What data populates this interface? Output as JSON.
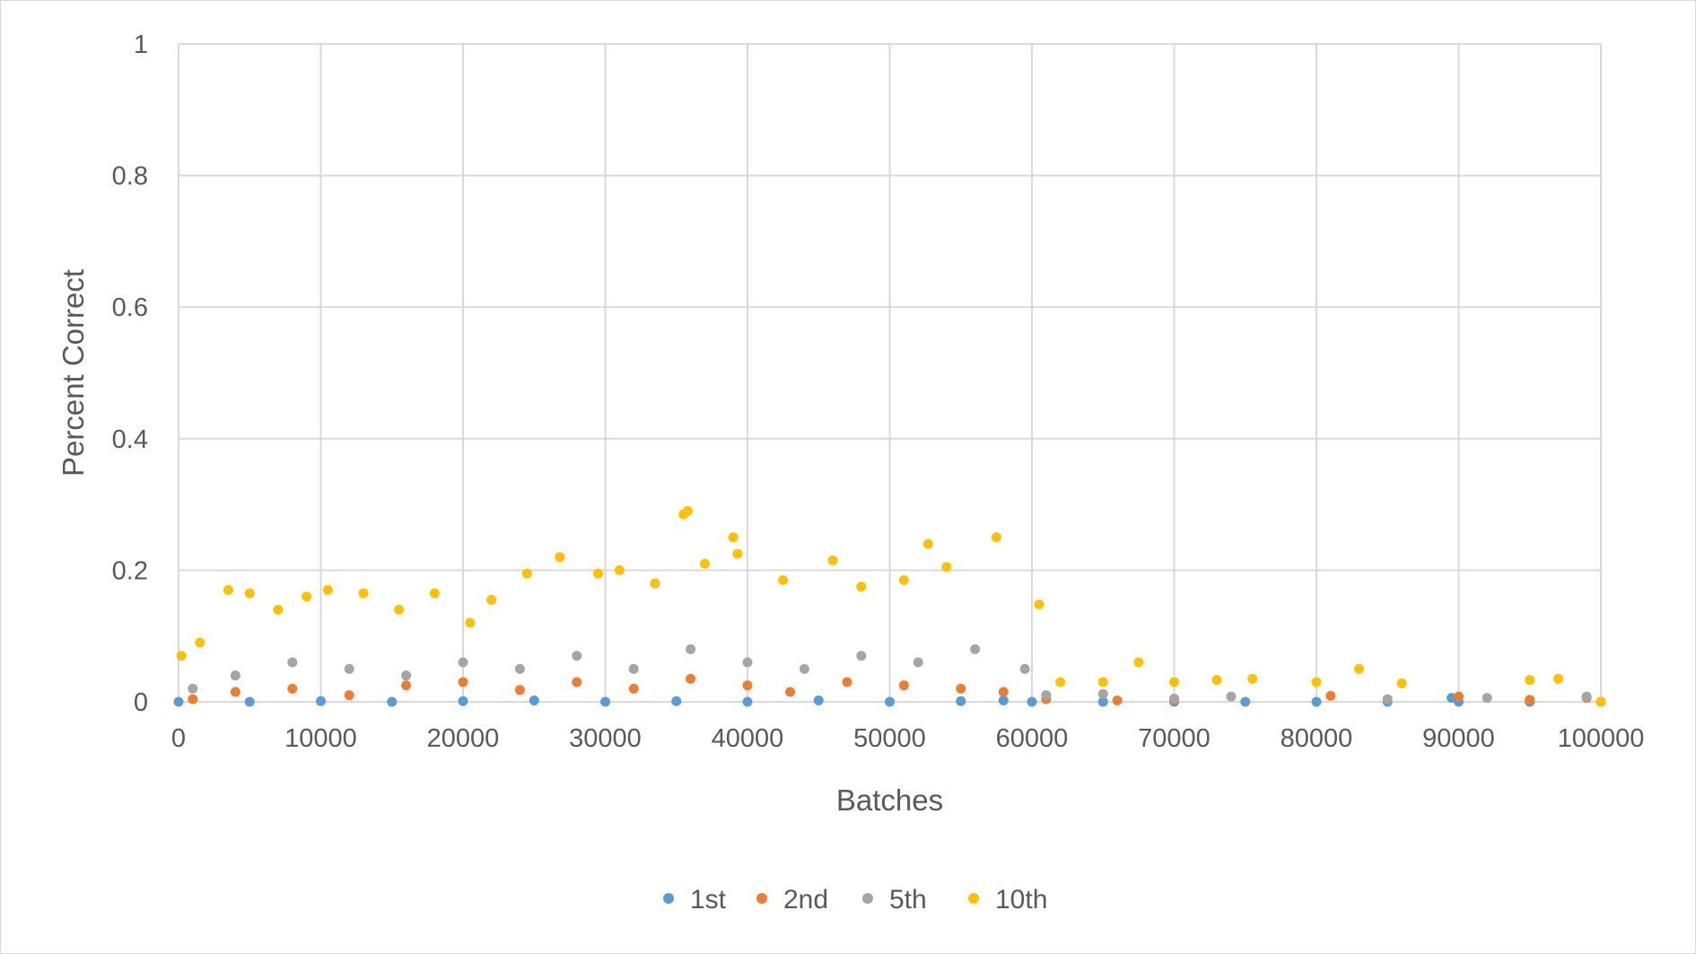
{
  "chart_data": {
    "type": "scatter",
    "title": "",
    "xlabel": "Batches",
    "ylabel": "Percent Correct",
    "xlim": [
      0,
      100000
    ],
    "ylim": [
      0,
      1
    ],
    "x_ticks": [
      "0",
      "10000",
      "20000",
      "30000",
      "40000",
      "50000",
      "60000",
      "70000",
      "80000",
      "90000",
      "100000"
    ],
    "y_ticks": [
      "0",
      "0.2",
      "0.4",
      "0.6",
      "0.8",
      "1"
    ],
    "grid": true,
    "legend_position": "bottom",
    "series": [
      {
        "name": "1st",
        "color": "#5B9BD5",
        "points": [
          [
            0,
            0.0
          ],
          [
            5000,
            0.0
          ],
          [
            10000,
            0.001
          ],
          [
            15000,
            0.0
          ],
          [
            20000,
            0.001
          ],
          [
            25000,
            0.002
          ],
          [
            30000,
            0.0
          ],
          [
            35000,
            0.001
          ],
          [
            40000,
            0.0
          ],
          [
            45000,
            0.002
          ],
          [
            50000,
            0.0
          ],
          [
            55000,
            0.001
          ],
          [
            58000,
            0.002
          ],
          [
            60000,
            0.0
          ],
          [
            65000,
            0.0
          ],
          [
            70000,
            0.0
          ],
          [
            75000,
            0.0
          ],
          [
            80000,
            0.0
          ],
          [
            85000,
            0.0
          ],
          [
            89500,
            0.006
          ],
          [
            90000,
            0.0
          ],
          [
            95000,
            0.0
          ],
          [
            100000,
            0.0
          ]
        ]
      },
      {
        "name": "2nd",
        "color": "#ED7D31",
        "points": [
          [
            1000,
            0.004
          ],
          [
            4000,
            0.015
          ],
          [
            8000,
            0.02
          ],
          [
            12000,
            0.01
          ],
          [
            16000,
            0.025
          ],
          [
            20000,
            0.03
          ],
          [
            24000,
            0.018
          ],
          [
            28000,
            0.03
          ],
          [
            32000,
            0.02
          ],
          [
            36000,
            0.035
          ],
          [
            40000,
            0.025
          ],
          [
            43000,
            0.015
          ],
          [
            47000,
            0.03
          ],
          [
            51000,
            0.025
          ],
          [
            55000,
            0.02
          ],
          [
            58000,
            0.015
          ],
          [
            61000,
            0.004
          ],
          [
            66000,
            0.002
          ],
          [
            70000,
            0.003
          ],
          [
            81000,
            0.009
          ],
          [
            90000,
            0.008
          ],
          [
            95000,
            0.003
          ],
          [
            99000,
            0.006
          ]
        ]
      },
      {
        "name": "5th",
        "color": "#A5A5A5",
        "points": [
          [
            1000,
            0.02
          ],
          [
            4000,
            0.04
          ],
          [
            8000,
            0.06
          ],
          [
            12000,
            0.05
          ],
          [
            16000,
            0.04
          ],
          [
            20000,
            0.06
          ],
          [
            24000,
            0.05
          ],
          [
            28000,
            0.07
          ],
          [
            32000,
            0.05
          ],
          [
            36000,
            0.08
          ],
          [
            40000,
            0.06
          ],
          [
            44000,
            0.05
          ],
          [
            48000,
            0.07
          ],
          [
            52000,
            0.06
          ],
          [
            56000,
            0.08
          ],
          [
            59500,
            0.05
          ],
          [
            61000,
            0.01
          ],
          [
            65000,
            0.012
          ],
          [
            70000,
            0.005
          ],
          [
            74000,
            0.008
          ],
          [
            85000,
            0.004
          ],
          [
            92000,
            0.006
          ],
          [
            99000,
            0.008
          ]
        ]
      },
      {
        "name": "10th",
        "color": "#FFC000",
        "points": [
          [
            200,
            0.07
          ],
          [
            1500,
            0.09
          ],
          [
            3500,
            0.17
          ],
          [
            5000,
            0.165
          ],
          [
            7000,
            0.14
          ],
          [
            9000,
            0.16
          ],
          [
            10500,
            0.17
          ],
          [
            13000,
            0.165
          ],
          [
            15500,
            0.14
          ],
          [
            18000,
            0.165
          ],
          [
            20500,
            0.12
          ],
          [
            22000,
            0.155
          ],
          [
            24500,
            0.195
          ],
          [
            26800,
            0.22
          ],
          [
            29500,
            0.195
          ],
          [
            31000,
            0.2
          ],
          [
            33500,
            0.18
          ],
          [
            35500,
            0.285
          ],
          [
            35800,
            0.29
          ],
          [
            37000,
            0.21
          ],
          [
            39000,
            0.25
          ],
          [
            39300,
            0.225
          ],
          [
            42500,
            0.185
          ],
          [
            46000,
            0.215
          ],
          [
            48000,
            0.175
          ],
          [
            51000,
            0.185
          ],
          [
            52700,
            0.24
          ],
          [
            54000,
            0.205
          ],
          [
            57500,
            0.25
          ],
          [
            60500,
            0.148
          ],
          [
            62000,
            0.03
          ],
          [
            65000,
            0.03
          ],
          [
            67500,
            0.06
          ],
          [
            70000,
            0.03
          ],
          [
            73000,
            0.033
          ],
          [
            75500,
            0.035
          ],
          [
            80000,
            0.03
          ],
          [
            83000,
            0.05
          ],
          [
            86000,
            0.028
          ],
          [
            95000,
            0.033
          ],
          [
            97000,
            0.035
          ],
          [
            100000,
            0.0
          ]
        ]
      }
    ]
  }
}
